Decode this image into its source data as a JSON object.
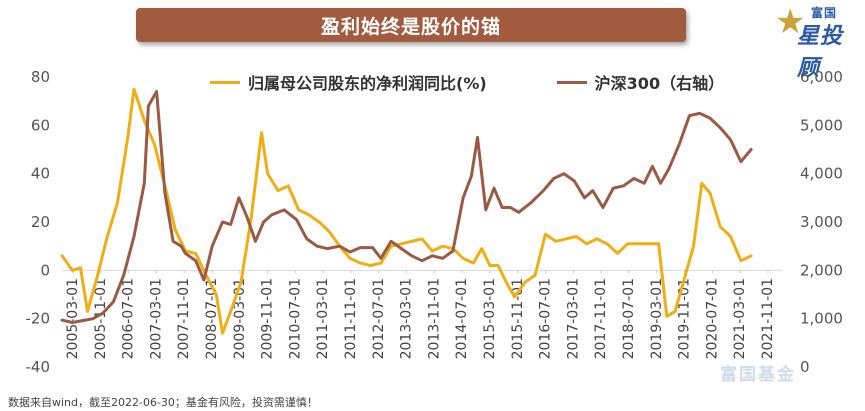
{
  "header": {
    "title": "盈利始终是股价的锚"
  },
  "brand": {
    "top": "富国",
    "main": "星投顾",
    "watermark": "富国基金"
  },
  "footnote": "数据来自wind，截至2022-06-30；基金有风险，投资需谨慎！",
  "colors": {
    "banner": "#a35b3f",
    "profit": "#f0ae12",
    "index": "#9a5a44"
  },
  "chart_data": {
    "type": "line",
    "title": "盈利始终是股价的锚",
    "y_left": {
      "ticks": [
        "80",
        "60",
        "40",
        "20",
        "0",
        "-20",
        "-40"
      ],
      "range": [
        -40,
        80
      ]
    },
    "y_right": {
      "ticks": [
        "6,000",
        "5,000",
        "4,000",
        "3,000",
        "2,000",
        "1,000",
        "0"
      ],
      "range": [
        0,
        6000
      ]
    },
    "x_tick_labels": [
      "2005-03-01",
      "2005-11-01",
      "2006-07-01",
      "2007-03-01",
      "2007-11-01",
      "2008-07-01",
      "2009-03-01",
      "2009-11-01",
      "2010-07-01",
      "2011-03-01",
      "2011-11-01",
      "2012-07-01",
      "2013-03-01",
      "2013-11-01",
      "2014-07-01",
      "2015-03-01",
      "2015-11-01",
      "2016-07-01",
      "2017-03-01",
      "2017-11-01",
      "2018-07-01",
      "2019-03-01",
      "2019-11-01",
      "2020-07-01",
      "2021-03-01",
      "2021-11-01"
    ],
    "x_range": [
      2005.0,
      2022.5
    ],
    "series": [
      {
        "name": "归属母公司股东的净利润同比(%)",
        "axis": "left",
        "points": [
          [
            2005.0,
            6
          ],
          [
            2005.25,
            0
          ],
          [
            2005.45,
            1
          ],
          [
            2005.62,
            -17
          ],
          [
            2005.85,
            -3
          ],
          [
            2006.1,
            14
          ],
          [
            2006.35,
            28
          ],
          [
            2006.6,
            55
          ],
          [
            2006.75,
            75
          ],
          [
            2007.0,
            62
          ],
          [
            2007.25,
            52
          ],
          [
            2007.5,
            35
          ],
          [
            2007.75,
            17
          ],
          [
            2008.0,
            8
          ],
          [
            2008.25,
            7
          ],
          [
            2008.5,
            -2
          ],
          [
            2008.75,
            -10
          ],
          [
            2008.9,
            -26
          ],
          [
            2009.1,
            -17
          ],
          [
            2009.35,
            -5
          ],
          [
            2009.6,
            22
          ],
          [
            2009.85,
            57
          ],
          [
            2010.0,
            40
          ],
          [
            2010.25,
            33
          ],
          [
            2010.5,
            35
          ],
          [
            2010.75,
            25
          ],
          [
            2011.0,
            23
          ],
          [
            2011.25,
            20
          ],
          [
            2011.5,
            16
          ],
          [
            2011.75,
            10
          ],
          [
            2012.0,
            5
          ],
          [
            2012.25,
            3
          ],
          [
            2012.5,
            2
          ],
          [
            2012.75,
            3
          ],
          [
            2013.0,
            10
          ],
          [
            2013.25,
            11
          ],
          [
            2013.5,
            12
          ],
          [
            2013.75,
            13
          ],
          [
            2014.0,
            8
          ],
          [
            2014.25,
            10
          ],
          [
            2014.5,
            9
          ],
          [
            2014.75,
            5
          ],
          [
            2015.0,
            3
          ],
          [
            2015.2,
            9
          ],
          [
            2015.4,
            2
          ],
          [
            2015.6,
            2
          ],
          [
            2015.8,
            -5
          ],
          [
            2016.0,
            -11
          ],
          [
            2016.25,
            -5
          ],
          [
            2016.5,
            -2
          ],
          [
            2016.75,
            15
          ],
          [
            2017.0,
            12
          ],
          [
            2017.25,
            13
          ],
          [
            2017.5,
            14
          ],
          [
            2017.75,
            11
          ],
          [
            2018.0,
            13
          ],
          [
            2018.25,
            11
          ],
          [
            2018.5,
            7
          ],
          [
            2018.75,
            11
          ],
          [
            2019.0,
            11
          ],
          [
            2019.25,
            11
          ],
          [
            2019.5,
            11
          ],
          [
            2019.7,
            -19
          ],
          [
            2019.9,
            -17
          ],
          [
            2020.1,
            -5
          ],
          [
            2020.35,
            10
          ],
          [
            2020.55,
            36
          ],
          [
            2020.75,
            32
          ],
          [
            2021.0,
            18
          ],
          [
            2021.25,
            14
          ],
          [
            2021.5,
            4
          ],
          [
            2021.75,
            6
          ]
        ]
      },
      {
        "name": "沪深300（右轴）",
        "axis": "right",
        "points": [
          [
            2005.0,
            970
          ],
          [
            2005.25,
            920
          ],
          [
            2005.5,
            960
          ],
          [
            2005.75,
            1000
          ],
          [
            2006.0,
            1120
          ],
          [
            2006.25,
            1350
          ],
          [
            2006.5,
            1900
          ],
          [
            2006.75,
            2700
          ],
          [
            2007.0,
            3800
          ],
          [
            2007.1,
            5400
          ],
          [
            2007.3,
            5700
          ],
          [
            2007.5,
            3600
          ],
          [
            2007.7,
            2600
          ],
          [
            2007.9,
            2500
          ],
          [
            2008.0,
            2350
          ],
          [
            2008.25,
            2200
          ],
          [
            2008.45,
            1800
          ],
          [
            2008.65,
            2500
          ],
          [
            2008.9,
            3000
          ],
          [
            2009.1,
            2950
          ],
          [
            2009.3,
            3500
          ],
          [
            2009.5,
            3100
          ],
          [
            2009.7,
            2600
          ],
          [
            2009.9,
            3000
          ],
          [
            2010.1,
            3150
          ],
          [
            2010.4,
            3250
          ],
          [
            2010.7,
            3050
          ],
          [
            2010.95,
            2650
          ],
          [
            2011.2,
            2500
          ],
          [
            2011.45,
            2450
          ],
          [
            2011.75,
            2500
          ],
          [
            2012.0,
            2380
          ],
          [
            2012.25,
            2470
          ],
          [
            2012.55,
            2470
          ],
          [
            2012.75,
            2250
          ],
          [
            2013.0,
            2600
          ],
          [
            2013.25,
            2450
          ],
          [
            2013.5,
            2300
          ],
          [
            2013.75,
            2200
          ],
          [
            2014.0,
            2300
          ],
          [
            2014.25,
            2250
          ],
          [
            2014.5,
            2400
          ],
          [
            2014.75,
            3500
          ],
          [
            2014.95,
            3950
          ],
          [
            2015.1,
            4750
          ],
          [
            2015.3,
            3250
          ],
          [
            2015.5,
            3700
          ],
          [
            2015.7,
            3300
          ],
          [
            2015.9,
            3300
          ],
          [
            2016.1,
            3200
          ],
          [
            2016.4,
            3400
          ],
          [
            2016.7,
            3650
          ],
          [
            2016.95,
            3900
          ],
          [
            2017.2,
            4000
          ],
          [
            2017.45,
            3850
          ],
          [
            2017.7,
            3500
          ],
          [
            2017.9,
            3650
          ],
          [
            2018.15,
            3300
          ],
          [
            2018.4,
            3700
          ],
          [
            2018.65,
            3750
          ],
          [
            2018.9,
            3900
          ],
          [
            2019.15,
            3800
          ],
          [
            2019.35,
            4150
          ],
          [
            2019.55,
            3800
          ],
          [
            2019.75,
            4100
          ],
          [
            2020.0,
            4600
          ],
          [
            2020.25,
            5200
          ],
          [
            2020.5,
            5250
          ],
          [
            2020.75,
            5150
          ],
          [
            2021.0,
            4950
          ],
          [
            2021.25,
            4700
          ],
          [
            2021.5,
            4250
          ],
          [
            2021.75,
            4500
          ]
        ]
      }
    ],
    "legend_position": "top-center"
  }
}
